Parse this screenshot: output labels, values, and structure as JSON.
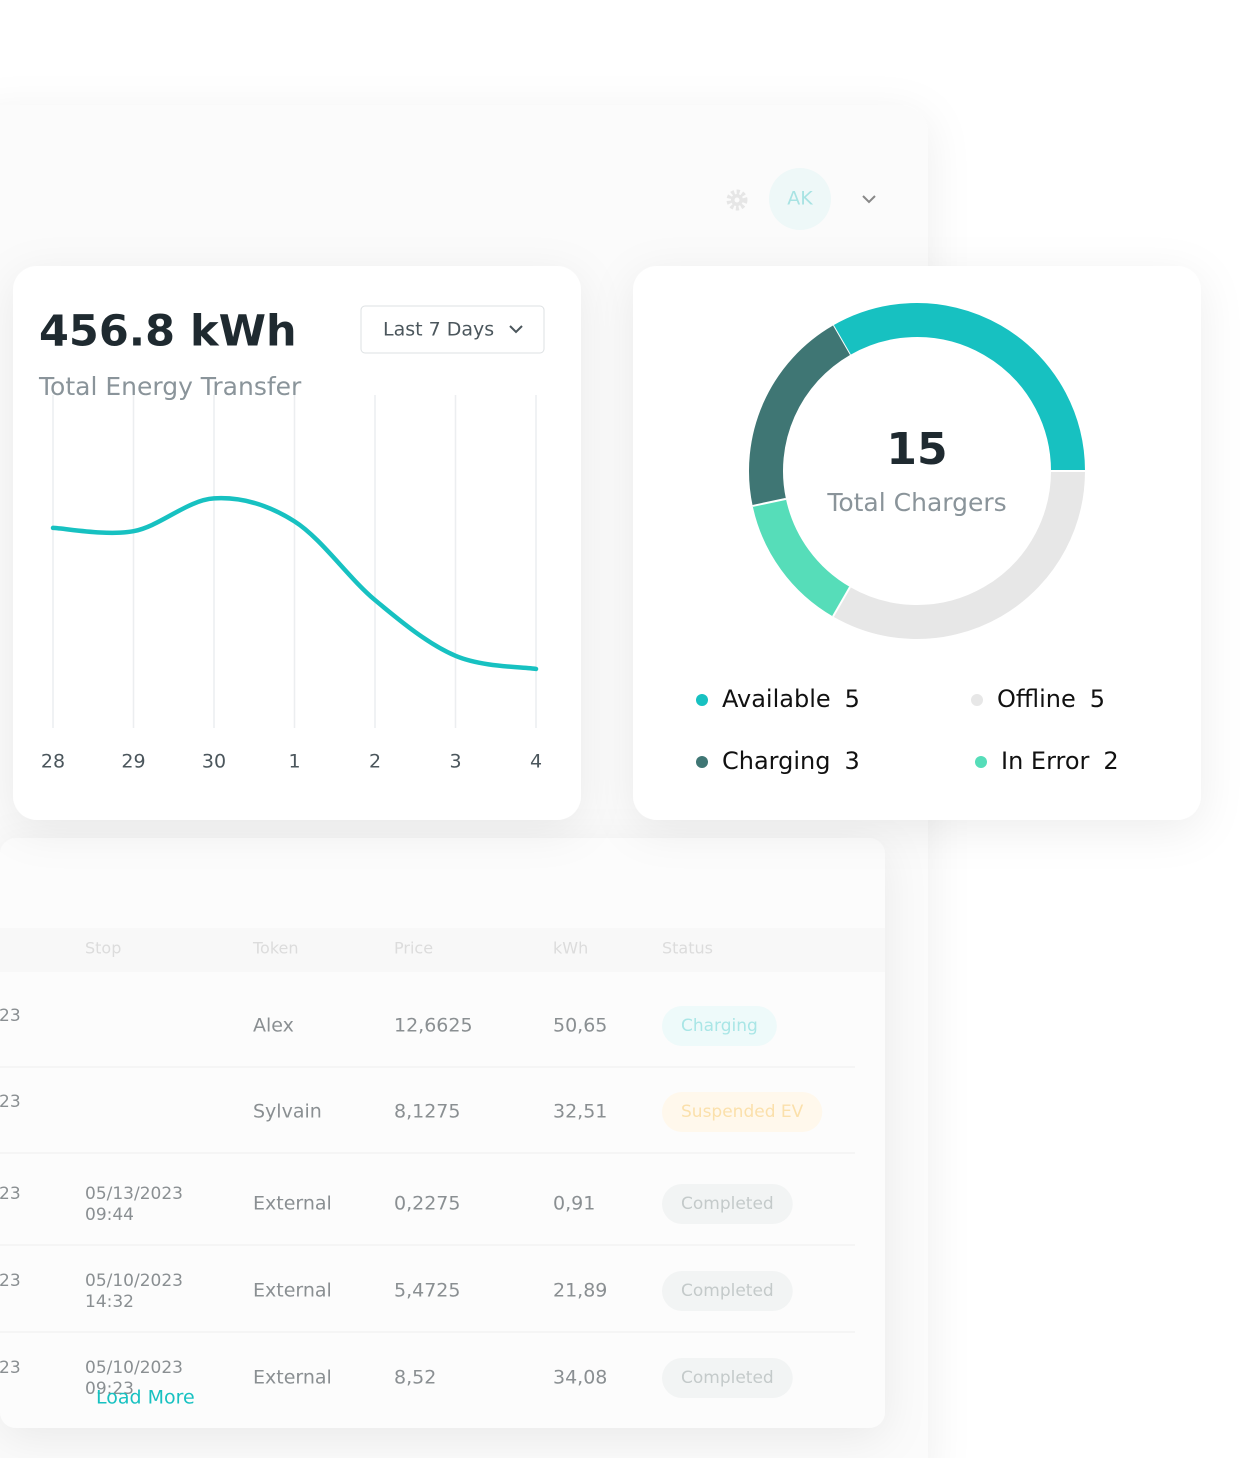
{
  "header": {
    "avatar": "AK"
  },
  "energy": {
    "value": "456.8 kWh",
    "label": "Total Energy Transfer",
    "range": "Last 7 Days",
    "chart_data": {
      "type": "line",
      "categories": [
        "28",
        "29",
        "30",
        "1",
        "2",
        "3",
        "4"
      ],
      "values": [
        61,
        60,
        70,
        63,
        39,
        22,
        18
      ],
      "ylim": [
        0,
        100
      ],
      "color": "#17c1c1",
      "grid": true
    }
  },
  "chargers": {
    "total": "15",
    "label": "Total Chargers",
    "chart_data": {
      "type": "donut",
      "categories": [
        "Available",
        "Offline",
        "Charging",
        "In Error"
      ],
      "values": [
        5,
        5,
        3,
        2
      ],
      "colors": [
        "#17c1c1",
        "#e7e7e7",
        "#3f7674",
        "#56ddb9"
      ]
    }
  },
  "table": {
    "columns": [
      "Stop",
      "Token",
      "Price",
      "kWh",
      "Status"
    ],
    "rows": [
      {
        "first": "23",
        "token": "Alex",
        "price": "12,6625",
        "kwh": "50,65",
        "status": "Charging"
      },
      {
        "first": "23",
        "token": "Sylvain",
        "price": "8,1275",
        "kwh": "32,51",
        "status": "Suspended EV"
      },
      {
        "first": "23",
        "stop": [
          "05/13/2023",
          "09:44"
        ],
        "token": "External",
        "price": "0,2275",
        "kwh": "0,91",
        "status": "Completed"
      },
      {
        "first": "23",
        "stop": [
          "05/10/2023",
          "14:32"
        ],
        "token": "External",
        "price": "5,4725",
        "kwh": "21,89",
        "status": "Completed"
      },
      {
        "first": "23",
        "stop": [
          "05/10/2023",
          "09:23"
        ],
        "token": "External",
        "price": "8,52",
        "kwh": "34,08",
        "status": "Completed"
      }
    ],
    "load_more": "Load More"
  }
}
